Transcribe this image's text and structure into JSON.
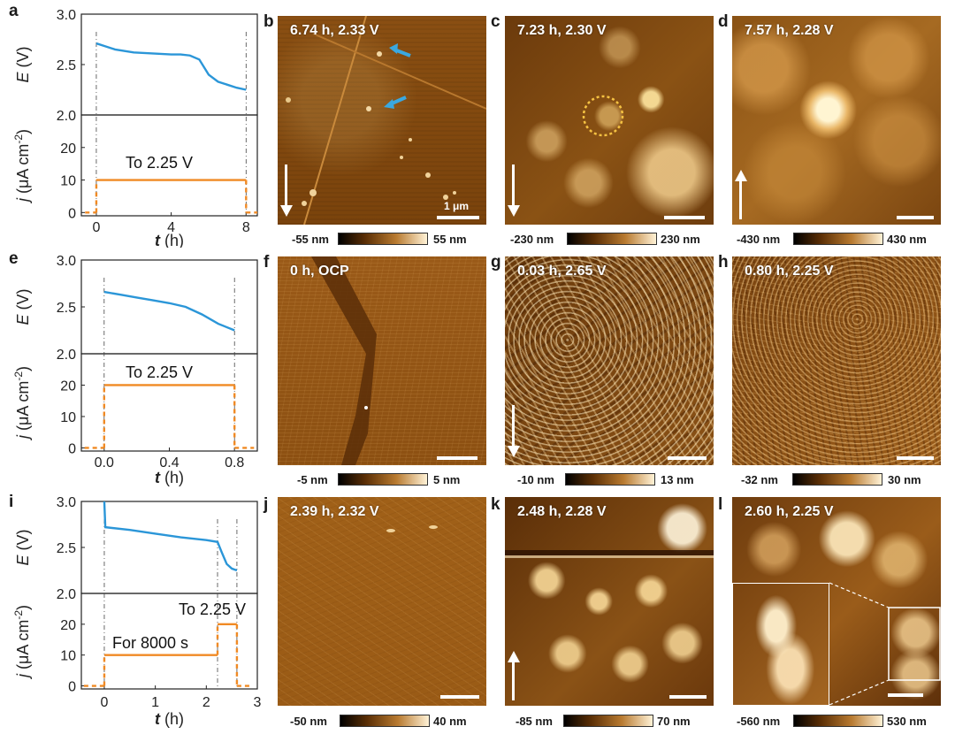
{
  "plots": [
    {
      "label": "a",
      "e_axis": {
        "ylabel_italic": "E",
        "ylabel_rest": " (V)",
        "ticks": [
          "3.0",
          "2.5",
          "2.0"
        ]
      },
      "j_axis": {
        "ylabel_italic": "j",
        "ylabel_rest": " (μA cm",
        "ylabel_sup": "-2",
        "ylabel_end": ")",
        "ticks": [
          "20",
          "10",
          "0"
        ]
      },
      "x_axis": {
        "xlabel_italic": "t",
        "xlabel_rest": " (h)",
        "ticks": [
          "0",
          "4",
          "8"
        ]
      },
      "annotations": [
        "To 2.25 V"
      ]
    },
    {
      "label": "e",
      "e_axis": {
        "ylabel_italic": "E",
        "ylabel_rest": " (V)",
        "ticks": [
          "3.0",
          "2.5",
          "2.0"
        ]
      },
      "j_axis": {
        "ylabel_italic": "j",
        "ylabel_rest": " (μA cm",
        "ylabel_sup": "-2",
        "ylabel_end": ")",
        "ticks": [
          "20",
          "10",
          "0"
        ]
      },
      "x_axis": {
        "xlabel_italic": "t",
        "xlabel_rest": " (h)",
        "ticks": [
          "0.0",
          "0.4",
          "0.8"
        ]
      },
      "annotations": [
        "To 2.25 V"
      ]
    },
    {
      "label": "i",
      "e_axis": {
        "ylabel_italic": "E",
        "ylabel_rest": " (V)",
        "ticks": [
          "3.0",
          "2.5",
          "2.0"
        ]
      },
      "j_axis": {
        "ylabel_italic": "j",
        "ylabel_rest": " (μA cm",
        "ylabel_sup": "-2",
        "ylabel_end": ")",
        "ticks": [
          "20",
          "10",
          "0"
        ]
      },
      "x_axis": {
        "xlabel_italic": "t",
        "xlabel_rest": " (h)",
        "ticks": [
          "0",
          "1",
          "2",
          "3"
        ]
      },
      "annotations": [
        "To 2.25 V",
        "For 8000 s"
      ]
    }
  ],
  "images": [
    {
      "label": "b",
      "caption": "6.74 h, 2.33 V",
      "scalebar": "1 μm",
      "cbar_min": "-55 nm",
      "cbar_max": "55 nm"
    },
    {
      "label": "c",
      "caption": "7.23 h, 2.30 V",
      "cbar_min": "-230 nm",
      "cbar_max": "230 nm"
    },
    {
      "label": "d",
      "caption": "7.57 h, 2.28 V",
      "cbar_min": "-430 nm",
      "cbar_max": "430 nm"
    },
    {
      "label": "f",
      "caption": "0 h, OCP",
      "cbar_min": "-5 nm",
      "cbar_max": "5 nm"
    },
    {
      "label": "g",
      "caption": "0.03 h, 2.65 V",
      "cbar_min": "-10 nm",
      "cbar_max": "13 nm"
    },
    {
      "label": "h",
      "caption": "0.80 h, 2.25 V",
      "cbar_min": "-32 nm",
      "cbar_max": "30 nm"
    },
    {
      "label": "j",
      "caption": "2.39 h, 2.32 V",
      "cbar_min": "-50 nm",
      "cbar_max": "40 nm"
    },
    {
      "label": "k",
      "caption": "2.48 h, 2.28 V",
      "cbar_min": "-85 nm",
      "cbar_max": "70 nm"
    },
    {
      "label": "l",
      "caption": "2.60 h, 2.25 V",
      "cbar_min": "-560 nm",
      "cbar_max": "530 nm"
    }
  ],
  "chart_data": [
    {
      "type": "line",
      "panel": "a",
      "series": [
        {
          "name": "E",
          "x": [
            0,
            0.5,
            1,
            2,
            3,
            4,
            4.5,
            5,
            5.5,
            6,
            6.5,
            7,
            7.5,
            8
          ],
          "y": [
            2.71,
            2.68,
            2.65,
            2.62,
            2.61,
            2.6,
            2.6,
            2.59,
            2.55,
            2.4,
            2.33,
            2.3,
            2.27,
            2.25
          ]
        },
        {
          "name": "j",
          "x": [
            -0.6,
            0,
            0,
            8,
            8,
            8.6
          ],
          "y": [
            0,
            0,
            10,
            10,
            0,
            0
          ]
        }
      ],
      "xlim": [
        -0.8,
        8.6
      ],
      "e_ylim": [
        2.0,
        3.0
      ],
      "j_ylim": [
        -1,
        30
      ]
    },
    {
      "type": "line",
      "panel": "e",
      "series": [
        {
          "name": "E",
          "x": [
            0,
            0.1,
            0.2,
            0.3,
            0.4,
            0.5,
            0.6,
            0.7,
            0.8
          ],
          "y": [
            2.66,
            2.63,
            2.6,
            2.57,
            2.54,
            2.5,
            2.42,
            2.32,
            2.25
          ]
        },
        {
          "name": "j",
          "x": [
            -0.12,
            0,
            0,
            0.8,
            0.8,
            0.92
          ],
          "y": [
            0,
            0,
            20,
            20,
            0,
            0
          ]
        }
      ],
      "xlim": [
        -0.14,
        0.94
      ],
      "e_ylim": [
        2.0,
        3.0
      ],
      "j_ylim": [
        -1,
        30
      ]
    },
    {
      "type": "line",
      "panel": "i",
      "series": [
        {
          "name": "E",
          "x": [
            0,
            0.02,
            0.5,
            1,
            1.5,
            2,
            2.22,
            2.3,
            2.4,
            2.5,
            2.6
          ],
          "y": [
            3.0,
            2.72,
            2.69,
            2.65,
            2.61,
            2.58,
            2.56,
            2.45,
            2.32,
            2.27,
            2.25
          ]
        },
        {
          "name": "j",
          "x": [
            -0.4,
            0,
            0,
            2.22,
            2.22,
            2.6,
            2.6,
            2.85
          ],
          "y": [
            0,
            0,
            10,
            10,
            20,
            20,
            0,
            0
          ]
        }
      ],
      "xlim": [
        -0.45,
        3.0
      ],
      "e_ylim": [
        2.0,
        3.0
      ],
      "j_ylim": [
        -1,
        30
      ]
    }
  ],
  "colors": {
    "e_line": "#2b96d8",
    "j_line": "#f08a24",
    "guide": "#444444"
  }
}
